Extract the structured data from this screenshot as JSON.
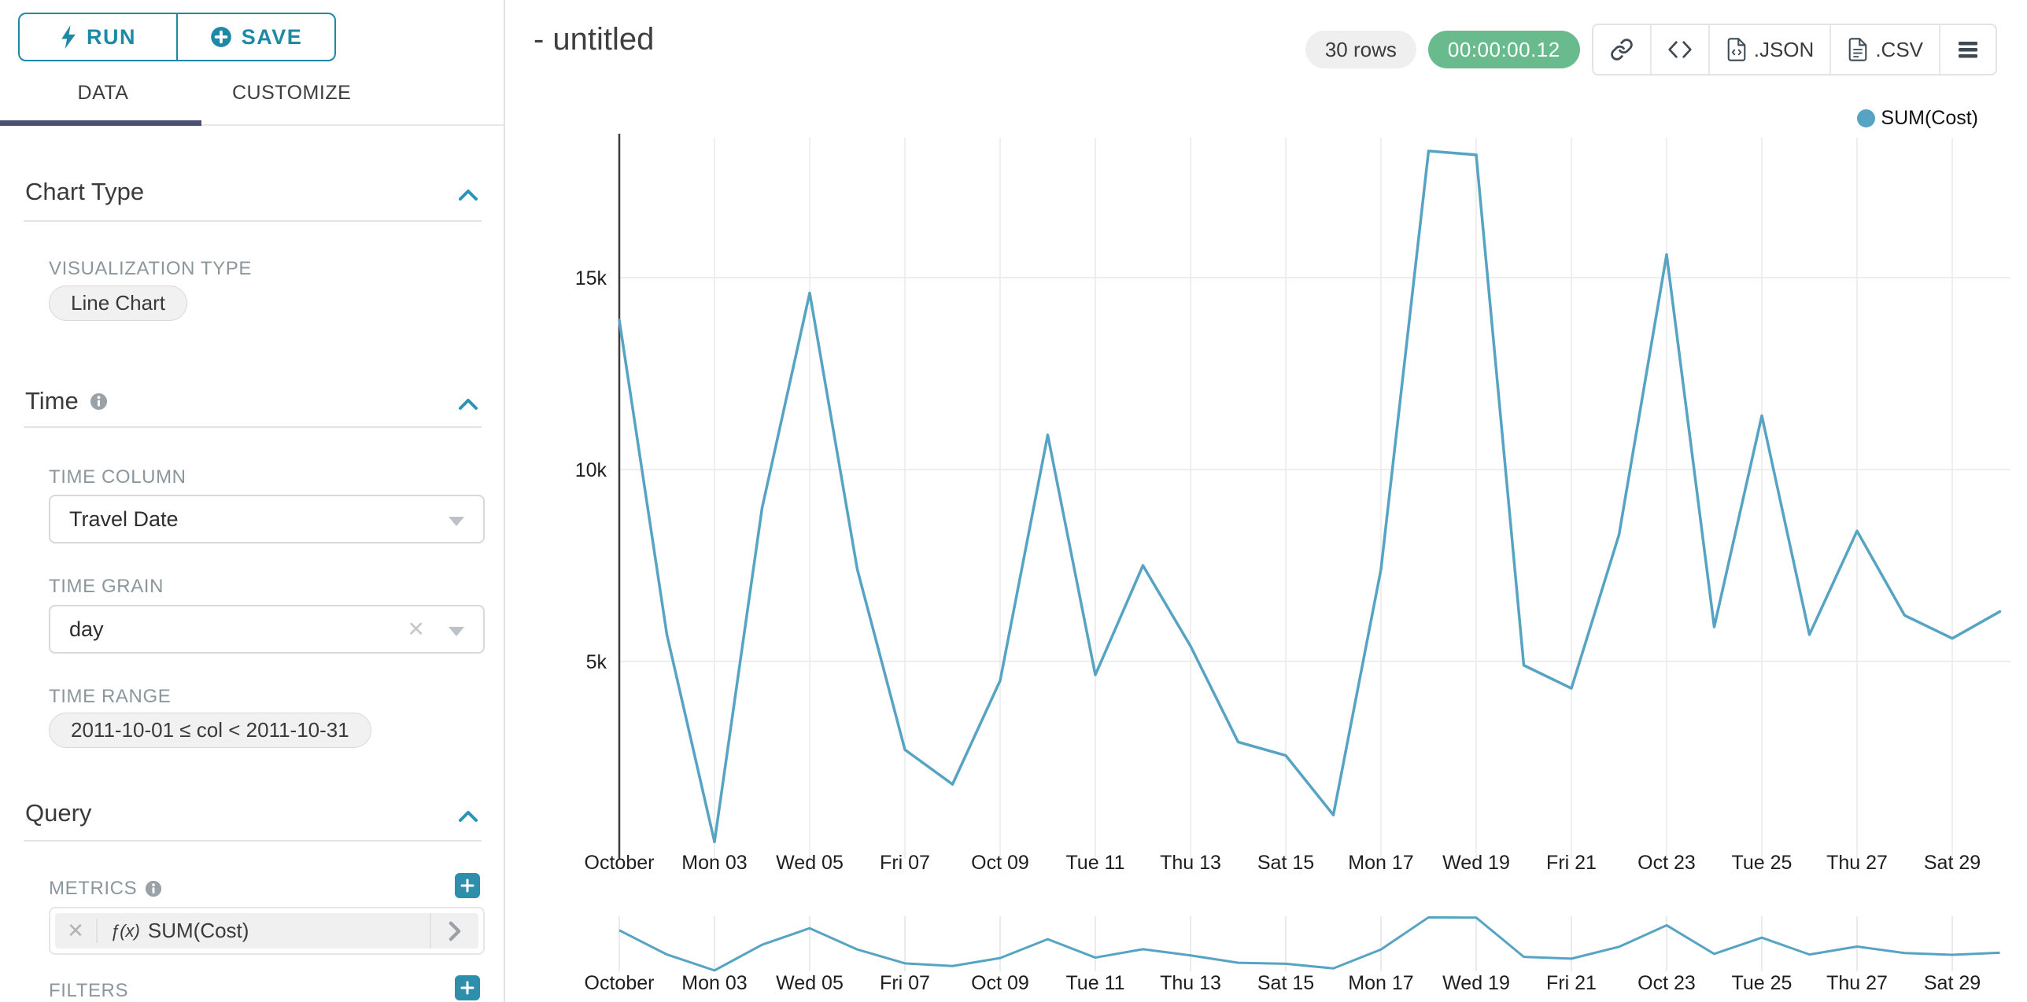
{
  "colors": {
    "accent_teal": "#1d89a5",
    "plus_button_teal": "#2e8fac",
    "line": "#57a3c3",
    "timer_green": "#69bb8d",
    "active_tab_indicator": "#4a4f78",
    "label_gray": "#8c979d"
  },
  "sidebar": {
    "run_label": "RUN",
    "save_label": "SAVE",
    "tabs": [
      {
        "label": "DATA",
        "active": true
      },
      {
        "label": "CUSTOMIZE",
        "active": false
      }
    ],
    "chart_type": {
      "title": "Chart Type",
      "viz_type_label": "VISUALIZATION TYPE",
      "viz_type_value": "Line Chart"
    },
    "time": {
      "title": "Time",
      "time_column_label": "TIME COLUMN",
      "time_column_value": "Travel Date",
      "time_grain_label": "TIME GRAIN",
      "time_grain_value": "day",
      "time_range_label": "TIME RANGE",
      "time_range_value": "2011-10-01 ≤ col < 2011-10-31"
    },
    "query": {
      "title": "Query",
      "metrics_label": "METRICS",
      "metric_fn": "ƒ(x)",
      "metric_value": "SUM(Cost)",
      "filters_label": "FILTERS"
    }
  },
  "header": {
    "title": "- untitled",
    "rows_badge": "30 rows",
    "timer_badge": "00:00:00.12",
    "export_json_label": ".JSON",
    "export_csv_label": ".CSV"
  },
  "legend": {
    "label": "SUM(Cost)"
  },
  "chart_data": {
    "type": "line",
    "title": "",
    "x_categories": [
      "2011-10-01",
      "2011-10-02",
      "2011-10-03",
      "2011-10-04",
      "2011-10-05",
      "2011-10-06",
      "2011-10-07",
      "2011-10-08",
      "2011-10-09",
      "2011-10-10",
      "2011-10-11",
      "2011-10-12",
      "2011-10-13",
      "2011-10-14",
      "2011-10-15",
      "2011-10-16",
      "2011-10-17",
      "2011-10-18",
      "2011-10-19",
      "2011-10-20",
      "2011-10-21",
      "2011-10-22",
      "2011-10-23",
      "2011-10-24",
      "2011-10-25",
      "2011-10-26",
      "2011-10-27",
      "2011-10-28",
      "2011-10-29",
      "2011-10-30"
    ],
    "series": [
      {
        "name": "SUM(Cost)",
        "values": [
          13900,
          5700,
          300,
          9000,
          14600,
          7400,
          2700,
          1800,
          4500,
          10900,
          4650,
          7500,
          5400,
          2900,
          2550,
          1000,
          7400,
          18300,
          18200,
          4900,
          4300,
          8300,
          15600,
          5900,
          11400,
          5700,
          8400,
          6200,
          5600,
          6300
        ]
      }
    ],
    "x_tick_labels": [
      "October",
      "Mon 03",
      "Wed 05",
      "Fri 07",
      "Oct 09",
      "Tue 11",
      "Thu 13",
      "Sat 15",
      "Mon 17",
      "Wed 19",
      "Fri 21",
      "Oct 23",
      "Tue 25",
      "Thu 27",
      "Sat 29"
    ],
    "x_tick_day_indices": [
      0,
      2,
      4,
      6,
      8,
      10,
      12,
      14,
      16,
      18,
      20,
      22,
      24,
      26,
      28
    ],
    "yticks": [
      {
        "value": 5000,
        "label": "5k"
      },
      {
        "value": 10000,
        "label": "10k"
      },
      {
        "value": 15000,
        "label": "15k"
      }
    ],
    "ylim": [
      0,
      18650
    ],
    "grid": true,
    "legend_position": "top-right",
    "has_brush_minimap": true
  }
}
